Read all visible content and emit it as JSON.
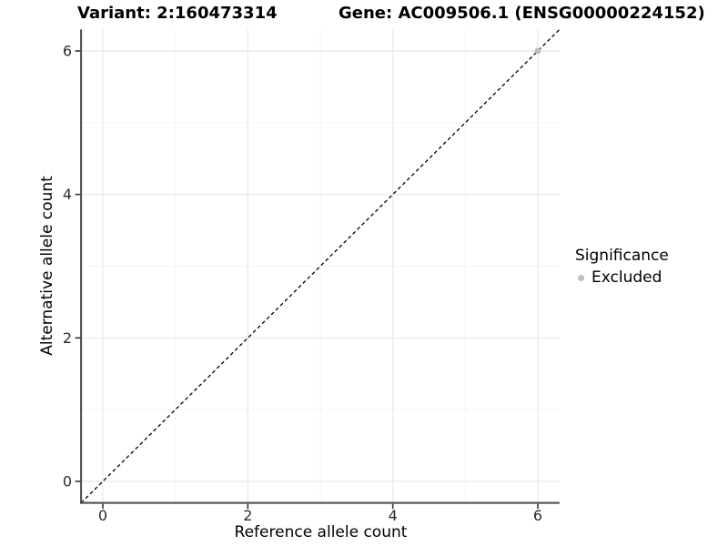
{
  "header": {
    "variant_title": "Variant: 2:160473314",
    "gene_title": "Gene: AC009506.1 (ENSG00000224152)"
  },
  "chart_data": {
    "type": "scatter",
    "title": "Variant: 2:160473314   Gene: AC009506.1 (ENSG00000224152)",
    "xlabel": "Reference allele count",
    "ylabel": "Alternative allele count",
    "xlim": [
      -0.3,
      6.3
    ],
    "ylim": [
      -0.3,
      6.3
    ],
    "x_ticks": [
      0,
      2,
      4,
      6
    ],
    "y_ticks": [
      0,
      2,
      4,
      6
    ],
    "x_minor_ticks": [
      1,
      3,
      5
    ],
    "y_minor_ticks": [
      1,
      3,
      5
    ],
    "grid": "major+minor",
    "identity_line": {
      "type": "abline",
      "slope": 1,
      "intercept": 0,
      "style": "dashed",
      "color": "#000000"
    },
    "series": [
      {
        "name": "Excluded",
        "color": "#bebebe",
        "points": [
          [
            6,
            6
          ]
        ]
      }
    ],
    "legend": {
      "title": "Significance",
      "position": "right",
      "items": [
        {
          "label": "Excluded",
          "color": "#bebebe"
        }
      ]
    },
    "style": {
      "grid_major_color": "#e8e8e8",
      "grid_minor_color": "#f4f4f4",
      "axis_line_color": "#4a4a4a",
      "tick_mark_color": "#333333",
      "tick_label_color": "#2b2b2b",
      "point_radius": 3.5
    }
  }
}
